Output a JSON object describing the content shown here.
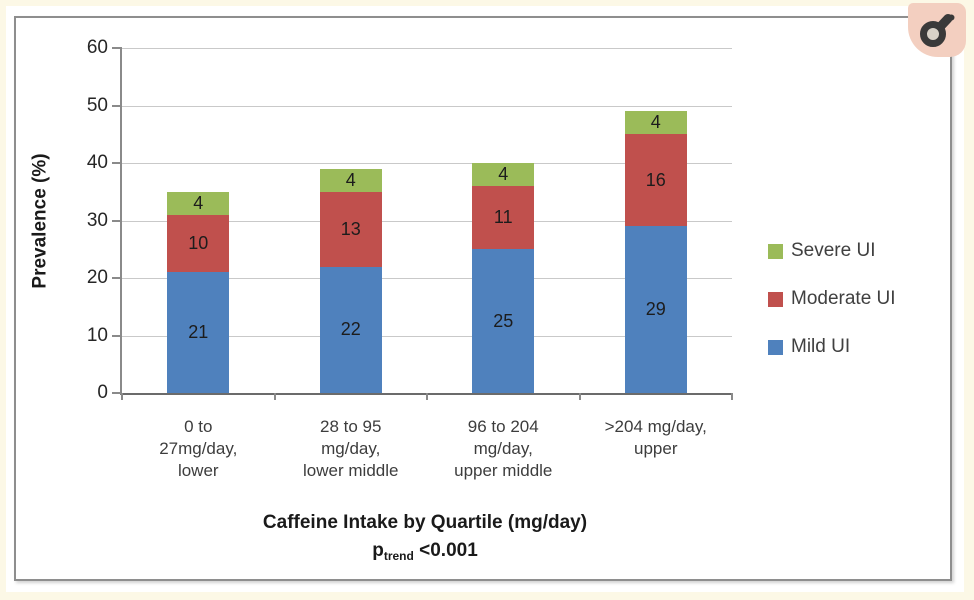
{
  "page": {
    "background_color": "#fcf8e6",
    "panel_border_color": "#8e8e8e"
  },
  "corner_badge": {
    "icon": "male-symbol-icon",
    "glyph_color": "#3a3a3a",
    "background_color": "#f3cfc0"
  },
  "chart_data": {
    "type": "bar",
    "stacked": true,
    "xlabel": "Caffeine Intake by Quartile (mg/day)",
    "xlabel_note": {
      "p": "p",
      "sub": "trend",
      "value": " <0.001"
    },
    "ylabel": "Prevalence (%)",
    "ylim": [
      0,
      60
    ],
    "yticks": [
      0,
      10,
      20,
      30,
      40,
      50,
      60
    ],
    "grid": "horizontal",
    "legend_position": "right",
    "categories": [
      "0 to 27mg/day, lower",
      "28 to 95 mg/day, lower middle",
      "96 to 204 mg/day, upper middle",
      ">204 mg/day, upper"
    ],
    "category_lines": [
      [
        "0 to",
        "27mg/day,",
        "lower"
      ],
      [
        "28 to 95",
        "mg/day,",
        "lower middle"
      ],
      [
        "96 to 204",
        "mg/day,",
        "upper middle"
      ],
      [
        ">204 mg/day,",
        "upper"
      ]
    ],
    "series": [
      {
        "name": "Mild UI",
        "color": "#4F81BD",
        "values": [
          21,
          22,
          25,
          29
        ]
      },
      {
        "name": "Moderate UI",
        "color": "#C0504D",
        "values": [
          10,
          13,
          11,
          16
        ]
      },
      {
        "name": "Severe UI",
        "color": "#9BBB59",
        "values": [
          4,
          4,
          4,
          4
        ]
      }
    ],
    "legend_order": [
      "Severe UI",
      "Moderate UI",
      "Mild UI"
    ]
  }
}
